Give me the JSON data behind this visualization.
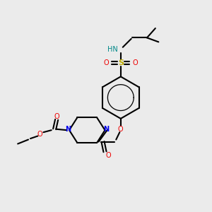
{
  "background_color": "#ebebeb",
  "atom_colors": {
    "C": "#000000",
    "N": "#0000ee",
    "O": "#ee0000",
    "S": "#bbaa00",
    "H": "#008888"
  },
  "figsize": [
    3.0,
    3.0
  ],
  "dpi": 100,
  "xlim": [
    0,
    10
  ],
  "ylim": [
    0,
    10
  ]
}
